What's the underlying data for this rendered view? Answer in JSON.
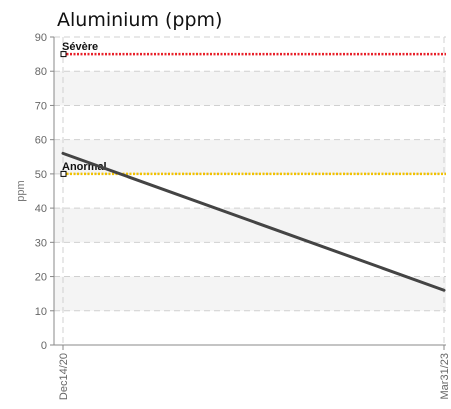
{
  "chart_data": {
    "type": "line",
    "title": "Aluminium (ppm)",
    "ylabel": "ppm",
    "ylim": [
      0,
      90
    ],
    "yticks": [
      0,
      10,
      20,
      30,
      40,
      50,
      60,
      70,
      80,
      90
    ],
    "x": [
      "Dec14/20",
      "Mar31/23"
    ],
    "series": [
      {
        "values": [
          56,
          16
        ],
        "color": "#444444"
      }
    ],
    "thresholds": [
      {
        "label": "Sévère",
        "value": 85,
        "color": "#e8202a"
      },
      {
        "label": "Anormal",
        "value": 50,
        "color": "#f2c200"
      }
    ],
    "grid": true,
    "background_bands": "alternating light gray"
  }
}
